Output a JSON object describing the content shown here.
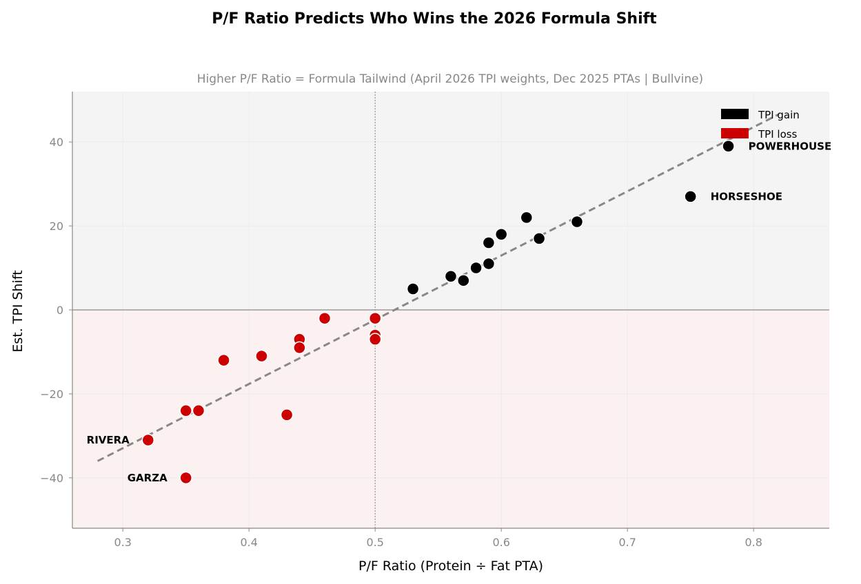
{
  "chart_data": {
    "type": "scatter",
    "title": "P/F Ratio Predicts Who Wins the 2026 Formula Shift",
    "subtitle": "Higher P/F Ratio = Formula Tailwind (April 2026 TPI weights, Dec 2025 PTAs | Bullvine)",
    "xlabel": "P/F Ratio (Protein ÷ Fat PTA)",
    "ylabel": "Est. TPI Shift",
    "xlim": [
      0.26,
      0.86
    ],
    "ylim": [
      -52,
      52
    ],
    "xticks": [
      0.3,
      0.4,
      0.5,
      0.6,
      0.7,
      0.8
    ],
    "xtick_labels": [
      "0.3",
      "0.4",
      "0.5",
      "0.6",
      "0.7",
      "0.8"
    ],
    "yticks": [
      40,
      20,
      0,
      -20,
      -40
    ],
    "ytick_labels": [
      "40",
      "20",
      "0",
      "−20",
      "−40"
    ],
    "grid": true,
    "legend_position": "top-right",
    "reference_lines": {
      "y": 0,
      "x": 0.5
    },
    "trend_line": {
      "x": [
        0.28,
        0.82
      ],
      "y": [
        -36,
        46.6
      ]
    },
    "shaded_regions": {
      "above_zero": "#f4f4f4",
      "below_zero": "#fcf1f1"
    },
    "series": [
      {
        "name": "TPI gain",
        "color": "#000000",
        "points": [
          {
            "x": 0.78,
            "y": 39,
            "label": "POWERHOUSE"
          },
          {
            "x": 0.75,
            "y": 27,
            "label": "HORSESHOE"
          },
          {
            "x": 0.66,
            "y": 21
          },
          {
            "x": 0.63,
            "y": 17
          },
          {
            "x": 0.62,
            "y": 22
          },
          {
            "x": 0.6,
            "y": 18
          },
          {
            "x": 0.59,
            "y": 16
          },
          {
            "x": 0.59,
            "y": 11
          },
          {
            "x": 0.58,
            "y": 10
          },
          {
            "x": 0.57,
            "y": 7
          },
          {
            "x": 0.56,
            "y": 8
          },
          {
            "x": 0.53,
            "y": 5
          }
        ]
      },
      {
        "name": "TPI loss",
        "color": "#cc0000",
        "points": [
          {
            "x": 0.5,
            "y": -2
          },
          {
            "x": 0.5,
            "y": -6
          },
          {
            "x": 0.5,
            "y": -7
          },
          {
            "x": 0.46,
            "y": -2
          },
          {
            "x": 0.44,
            "y": -7
          },
          {
            "x": 0.44,
            "y": -9
          },
          {
            "x": 0.43,
            "y": -25
          },
          {
            "x": 0.41,
            "y": -11
          },
          {
            "x": 0.38,
            "y": -12
          },
          {
            "x": 0.36,
            "y": -24
          },
          {
            "x": 0.35,
            "y": -24
          },
          {
            "x": 0.35,
            "y": -40,
            "label": "GARZA"
          },
          {
            "x": 0.32,
            "y": -31,
            "label": "RIVERA"
          }
        ]
      }
    ]
  }
}
